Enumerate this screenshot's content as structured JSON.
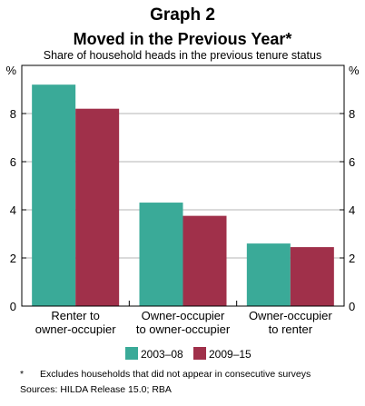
{
  "header": {
    "title": "Graph 2",
    "subtitle": "Moved in the Previous Year*",
    "description": "Share of household heads in the previous tenure status"
  },
  "footer": {
    "note_marker": "*",
    "note": "Excludes households that did not appear in consecutive surveys",
    "source": "Sources: HILDA Release 15.0; RBA"
  },
  "chart_data": {
    "type": "bar",
    "unit_left": "%",
    "unit_right": "%",
    "categories": [
      [
        "Renter to",
        "owner-occupier"
      ],
      [
        "Owner-occupier",
        "to owner-occupier"
      ],
      [
        "Owner-occupier",
        "to renter"
      ]
    ],
    "series": [
      {
        "name": "2003–08",
        "color": "#3aaa98",
        "values": [
          9.2,
          4.3,
          2.6
        ]
      },
      {
        "name": "2009–15",
        "color": "#a0304a",
        "values": [
          8.2,
          3.75,
          2.45
        ]
      }
    ],
    "ylim": [
      0,
      10
    ],
    "yticks": [
      0,
      2,
      4,
      6,
      8
    ],
    "grid": true,
    "legend": "bottom"
  }
}
